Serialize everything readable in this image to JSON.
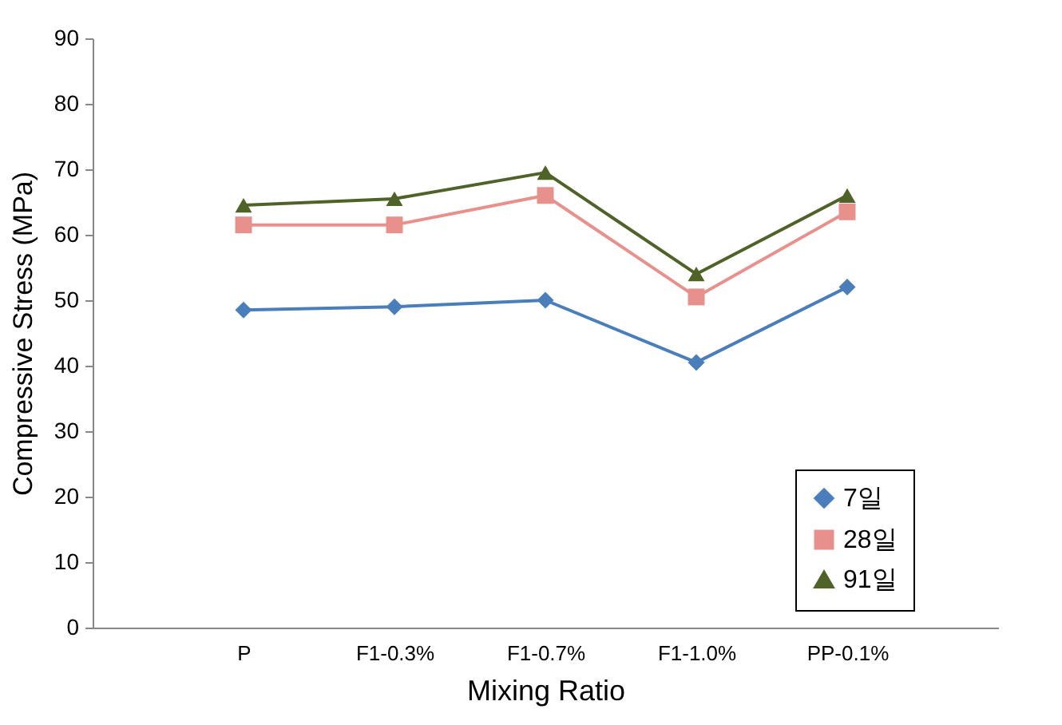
{
  "chart_data": {
    "type": "line",
    "xlabel": "Mixing Ratio",
    "ylabel": "Compressive Stress (MPa)",
    "categories": [
      "P",
      "F1-0.3%",
      "F1-0.7%",
      "F1-1.0%",
      "PP-0.1%"
    ],
    "series": [
      {
        "name": "7일",
        "color": "#4a7ebb",
        "marker": "diamond",
        "values": [
          48.5,
          49,
          50,
          40.5,
          52
        ]
      },
      {
        "name": "28일",
        "color": "#e8908c",
        "marker": "square",
        "values": [
          61.5,
          61.5,
          66,
          50.5,
          63.5
        ]
      },
      {
        "name": "91일",
        "color": "#4f6228",
        "marker": "triangle",
        "values": [
          64.5,
          65.5,
          69.5,
          54,
          66
        ]
      }
    ],
    "ylim": [
      0,
      90
    ],
    "yticks": [
      0,
      10,
      20,
      30,
      40,
      50,
      60,
      70,
      80,
      90
    ],
    "grid": false,
    "legend": "bottom right",
    "line_style": "solid"
  }
}
